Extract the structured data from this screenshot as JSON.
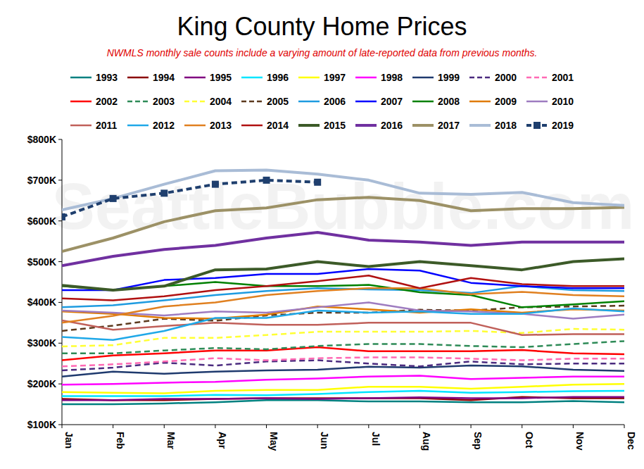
{
  "chart_data": {
    "type": "line",
    "title": "King County Home Prices",
    "subtitle": "NWMLS monthly sale counts include a varying amount of late-reported  data from previous months.",
    "watermark": "SeattleBubble.com",
    "categories": [
      "Jan",
      "Feb",
      "Mar",
      "Apr",
      "May",
      "Jun",
      "Jul",
      "Aug",
      "Sep",
      "Oct",
      "Nov",
      "Dec"
    ],
    "ylim": [
      100,
      800
    ],
    "yticks": [
      {
        "value": 100,
        "label": "$100K"
      },
      {
        "value": 200,
        "label": "$200K"
      },
      {
        "value": 300,
        "label": "$300K"
      },
      {
        "value": 400,
        "label": "$400K"
      },
      {
        "value": 500,
        "label": "$500K"
      },
      {
        "value": 600,
        "label": "$600K"
      },
      {
        "value": 700,
        "label": "$700K"
      },
      {
        "value": 800,
        "label": "$800K"
      }
    ],
    "grid": false,
    "legend": "top",
    "series": [
      {
        "name": "1993",
        "color": "#008080",
        "values": [
          150,
          150,
          152,
          155,
          160,
          160,
          157,
          157,
          155,
          155,
          158,
          155
        ]
      },
      {
        "name": "1994",
        "color": "#8b0000",
        "values": [
          163,
          160,
          160,
          163,
          165,
          165,
          165,
          165,
          160,
          168,
          165,
          165
        ]
      },
      {
        "name": "1995",
        "color": "#800080",
        "values": [
          160,
          160,
          163,
          163,
          165,
          163,
          165,
          167,
          165,
          165,
          168,
          168
        ]
      },
      {
        "name": "1996",
        "color": "#00e5ff",
        "values": [
          170,
          170,
          170,
          173,
          172,
          175,
          180,
          183,
          178,
          180,
          182,
          183
        ]
      },
      {
        "name": "1997",
        "color": "#ffff00",
        "values": [
          180,
          178,
          177,
          183,
          185,
          185,
          193,
          193,
          188,
          193,
          198,
          200
        ]
      },
      {
        "name": "1998",
        "color": "#ff00ff",
        "values": [
          198,
          200,
          203,
          205,
          210,
          213,
          218,
          220,
          212,
          215,
          218,
          218
        ]
      },
      {
        "name": "1999",
        "color": "#1f3a6e",
        "values": [
          218,
          230,
          225,
          230,
          233,
          235,
          242,
          240,
          245,
          243,
          235,
          232
        ]
      },
      {
        "name": "2000",
        "color": "#4b2b7f",
        "line_style": "dashed",
        "values": [
          233,
          240,
          252,
          245,
          255,
          258,
          250,
          243,
          255,
          248,
          250,
          250
        ]
      },
      {
        "name": "2001",
        "color": "#ff69b4",
        "line_style": "dashed",
        "values": [
          243,
          248,
          255,
          263,
          258,
          263,
          265,
          265,
          262,
          258,
          262,
          262
        ]
      },
      {
        "name": "2002",
        "color": "#ff0000",
        "values": [
          258,
          270,
          275,
          282,
          282,
          290,
          280,
          280,
          280,
          283,
          275,
          273
        ]
      },
      {
        "name": "2003",
        "color": "#2e8b57",
        "line_style": "dashed",
        "values": [
          275,
          275,
          282,
          288,
          285,
          293,
          298,
          298,
          293,
          290,
          298,
          305
        ]
      },
      {
        "name": "2004",
        "color": "#ffff33",
        "line_style": "dashed",
        "values": [
          292,
          295,
          313,
          313,
          320,
          328,
          328,
          328,
          330,
          325,
          335,
          333
        ]
      },
      {
        "name": "2005",
        "color": "#5c3a1e",
        "line_style": "dashed",
        "values": [
          330,
          343,
          360,
          355,
          368,
          375,
          375,
          382,
          380,
          388,
          390,
          392
        ]
      },
      {
        "name": "2006",
        "color": "#1e9be0",
        "values": [
          388,
          393,
          405,
          418,
          428,
          435,
          432,
          430,
          423,
          440,
          430,
          428
        ]
      },
      {
        "name": "2007",
        "color": "#0000ff",
        "values": [
          430,
          430,
          455,
          460,
          470,
          470,
          482,
          478,
          448,
          440,
          435,
          435
        ]
      },
      {
        "name": "2008",
        "color": "#008000",
        "values": [
          440,
          430,
          440,
          450,
          440,
          440,
          443,
          425,
          418,
          388,
          395,
          403
        ]
      },
      {
        "name": "2009",
        "color": "#e07b00",
        "values": [
          378,
          372,
          362,
          360,
          370,
          390,
          383,
          375,
          383,
          375,
          383,
          380
        ]
      },
      {
        "name": "2010",
        "color": "#9e7cc0",
        "values": [
          380,
          375,
          368,
          378,
          375,
          388,
          400,
          380,
          378,
          372,
          360,
          370
        ]
      },
      {
        "name": "2011",
        "color": "#c0605a",
        "values": [
          356,
          333,
          342,
          350,
          345,
          345,
          350,
          350,
          350,
          320,
          322,
          322
        ]
      },
      {
        "name": "2012",
        "color": "#1fa8e8",
        "values": [
          315,
          308,
          330,
          362,
          362,
          380,
          375,
          378,
          372,
          372,
          385,
          378
        ]
      },
      {
        "name": "2013",
        "color": "#e08020",
        "values": [
          350,
          367,
          390,
          400,
          418,
          428,
          435,
          435,
          420,
          426,
          418,
          415
        ]
      },
      {
        "name": "2014",
        "color": "#b01010",
        "values": [
          410,
          405,
          415,
          430,
          440,
          452,
          466,
          435,
          460,
          445,
          440,
          440
        ]
      },
      {
        "name": "2015",
        "color": "#3c5a28",
        "values": [
          442,
          430,
          440,
          480,
          482,
          500,
          488,
          500,
          490,
          480,
          500,
          507
        ]
      },
      {
        "name": "2016",
        "color": "#7030a0",
        "values": [
          490,
          513,
          530,
          540,
          558,
          572,
          553,
          548,
          540,
          548,
          548,
          548
        ]
      },
      {
        "name": "2017",
        "color": "#9c9166",
        "values": [
          525,
          558,
          598,
          625,
          632,
          652,
          658,
          650,
          625,
          630,
          630,
          633
        ]
      },
      {
        "name": "2018",
        "color": "#a9bcd6",
        "values": [
          627,
          655,
          690,
          723,
          725,
          715,
          700,
          668,
          665,
          670,
          645,
          638
        ]
      },
      {
        "name": "2019",
        "color": "#1f3f6e",
        "line_style": "dashed",
        "marker": "square",
        "values": [
          610,
          655,
          668,
          690,
          700,
          695,
          null,
          null,
          null,
          null,
          null,
          null
        ]
      }
    ]
  }
}
